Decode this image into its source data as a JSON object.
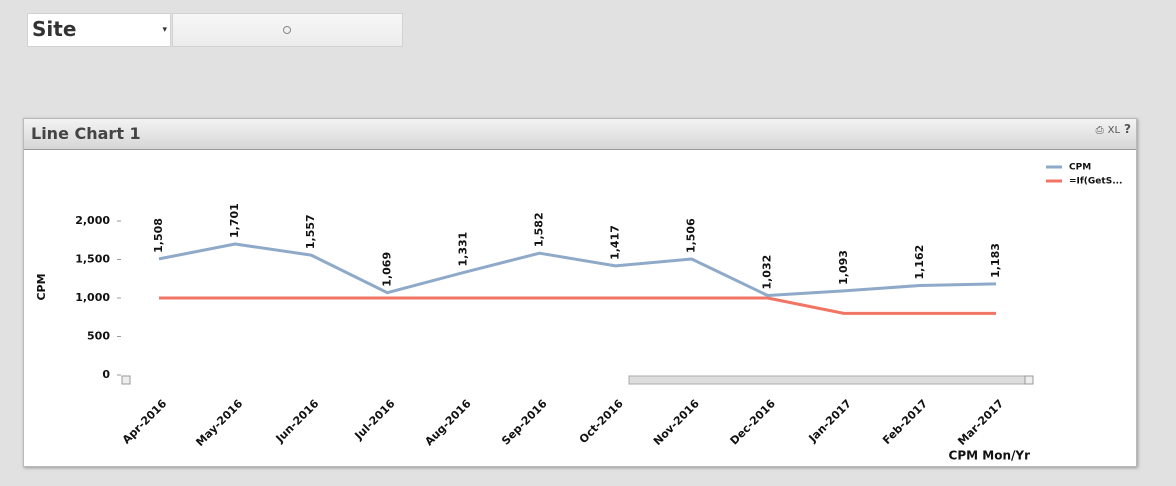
{
  "site_selector": {
    "label": "Site"
  },
  "toolbar": [
    "XL",
    "?"
  ],
  "chart_data": {
    "type": "line",
    "title": "Line Chart 1",
    "categories": [
      "Apr-2016",
      "May-2016",
      "Jun-2016",
      "Jul-2016",
      "Aug-2016",
      "Sep-2016",
      "Oct-2016",
      "Nov-2016",
      "Dec-2016",
      "Jan-2017",
      "Feb-2017",
      "Mar-2017"
    ],
    "series": [
      {
        "name": "CPM",
        "color": "#8fa9c9",
        "values": [
          1508,
          1701,
          1557,
          1069,
          1331,
          1582,
          1417,
          1506,
          1032,
          1093,
          1162,
          1183
        ],
        "value_labels": [
          "1,508",
          "1,701",
          "1,557",
          "1,069",
          "1,331",
          "1,582",
          "1,417",
          "1,506",
          "1,032",
          "1,093",
          "1,162",
          "1,183"
        ]
      },
      {
        "name": "=If(GetS...",
        "color": "#f07564",
        "values": [
          1000,
          1000,
          1000,
          1000,
          1000,
          1000,
          1000,
          1000,
          1000,
          800,
          800,
          800
        ]
      }
    ],
    "y_label": "CPM",
    "x_label": "CPM Mon/Yr",
    "ylim": [
      0,
      2000
    ],
    "yticks": [
      0,
      500,
      {
        "value": 1000,
        "label": "1,000"
      },
      {
        "value": 1500,
        "label": "1,500"
      },
      {
        "value": 2000,
        "label": "2,000"
      }
    ],
    "grid": false,
    "legend": "top-right"
  }
}
